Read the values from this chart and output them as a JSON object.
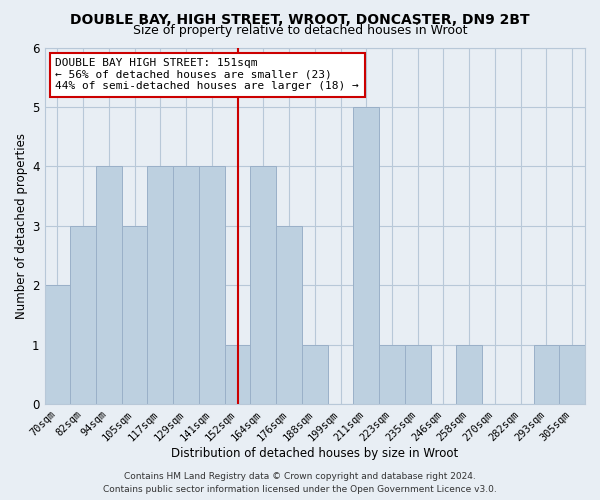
{
  "title": "DOUBLE BAY, HIGH STREET, WROOT, DONCASTER, DN9 2BT",
  "subtitle": "Size of property relative to detached houses in Wroot",
  "xlabel": "Distribution of detached houses by size in Wroot",
  "ylabel": "Number of detached properties",
  "categories": [
    "70sqm",
    "82sqm",
    "94sqm",
    "105sqm",
    "117sqm",
    "129sqm",
    "141sqm",
    "152sqm",
    "164sqm",
    "176sqm",
    "188sqm",
    "199sqm",
    "211sqm",
    "223sqm",
    "235sqm",
    "246sqm",
    "258sqm",
    "270sqm",
    "282sqm",
    "293sqm",
    "305sqm"
  ],
  "values": [
    2,
    3,
    4,
    3,
    4,
    4,
    4,
    1,
    4,
    3,
    1,
    0,
    5,
    1,
    1,
    0,
    1,
    0,
    0,
    1,
    1
  ],
  "bar_color": "#bdd0e0",
  "bar_edge_color": "#9ab0c8",
  "vline_index": 7,
  "vline_color": "#cc0000",
  "annotation_title": "DOUBLE BAY HIGH STREET: 151sqm",
  "annotation_line1": "← 56% of detached houses are smaller (23)",
  "annotation_line2": "44% of semi-detached houses are larger (18) →",
  "annotation_box_facecolor": "#ffffff",
  "annotation_box_edgecolor": "#cc0000",
  "ylim": [
    0,
    6
  ],
  "yticks": [
    0,
    1,
    2,
    3,
    4,
    5,
    6
  ],
  "footer1": "Contains HM Land Registry data © Crown copyright and database right 2024.",
  "footer2": "Contains public sector information licensed under the Open Government Licence v3.0.",
  "background_color": "#e8eef4",
  "plot_background_color": "#e8eef4",
  "grid_color": "#b8c8d8",
  "title_fontsize": 10,
  "subtitle_fontsize": 9,
  "axis_label_fontsize": 8.5,
  "tick_fontsize": 7.5,
  "annotation_fontsize": 8,
  "footer_fontsize": 6.5
}
